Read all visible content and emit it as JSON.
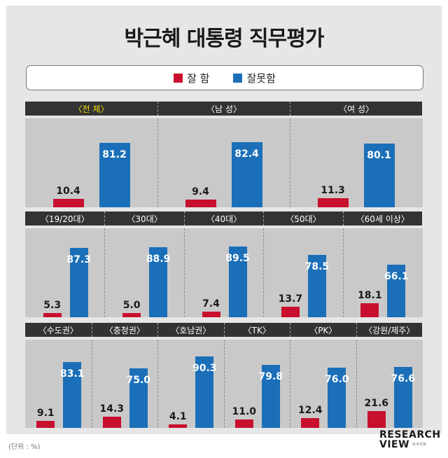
{
  "title": "박근혜 대통령 직무평가",
  "legend": {
    "items": [
      {
        "label": "잘 함",
        "color": "#c8102e"
      },
      {
        "label": "잘못함",
        "color": "#1b6fb8"
      }
    ]
  },
  "unit_note": "(단위 : %)",
  "logo": {
    "line1": "RESEARCH",
    "line2": "VIEW",
    "tagline": "리서치뷰"
  },
  "chart_data": {
    "type": "bar",
    "title": "박근혜 대통령 직무평가",
    "unit": "%",
    "series_names": [
      "잘 함",
      "잘못함"
    ],
    "groups": [
      {
        "label": "〈전 체〉",
        "values": [
          10.4,
          81.2
        ]
      },
      {
        "label": "〈남 성〉",
        "values": [
          9.4,
          82.4
        ]
      },
      {
        "label": "〈여 성〉",
        "values": [
          11.3,
          80.1
        ]
      },
      {
        "label": "〈19/20대〉",
        "values": [
          5.3,
          87.3
        ]
      },
      {
        "label": "〈30대〉",
        "values": [
          5.0,
          88.9
        ]
      },
      {
        "label": "〈40대〉",
        "values": [
          7.4,
          89.5
        ]
      },
      {
        "label": "〈50대〉",
        "values": [
          13.7,
          78.5
        ]
      },
      {
        "label": "〈60세 이상〉",
        "values": [
          18.1,
          66.1
        ]
      },
      {
        "label": "〈수도권〉",
        "values": [
          9.1,
          83.1
        ]
      },
      {
        "label": "〈충청권〉",
        "values": [
          14.3,
          75.0
        ]
      },
      {
        "label": "〈호남권〉",
        "values": [
          4.1,
          90.3
        ]
      },
      {
        "label": "〈TK〉",
        "values": [
          11.0,
          79.8
        ]
      },
      {
        "label": "〈PK〉",
        "values": [
          12.4,
          76.0
        ]
      },
      {
        "label": "〈강원/제주〉",
        "values": [
          21.6,
          76.6
        ]
      }
    ],
    "rows": [
      [
        0,
        1,
        2
      ],
      [
        3,
        4,
        5,
        6,
        7
      ],
      [
        8,
        9,
        10,
        11,
        12,
        13
      ]
    ],
    "highlight_group": 0
  }
}
